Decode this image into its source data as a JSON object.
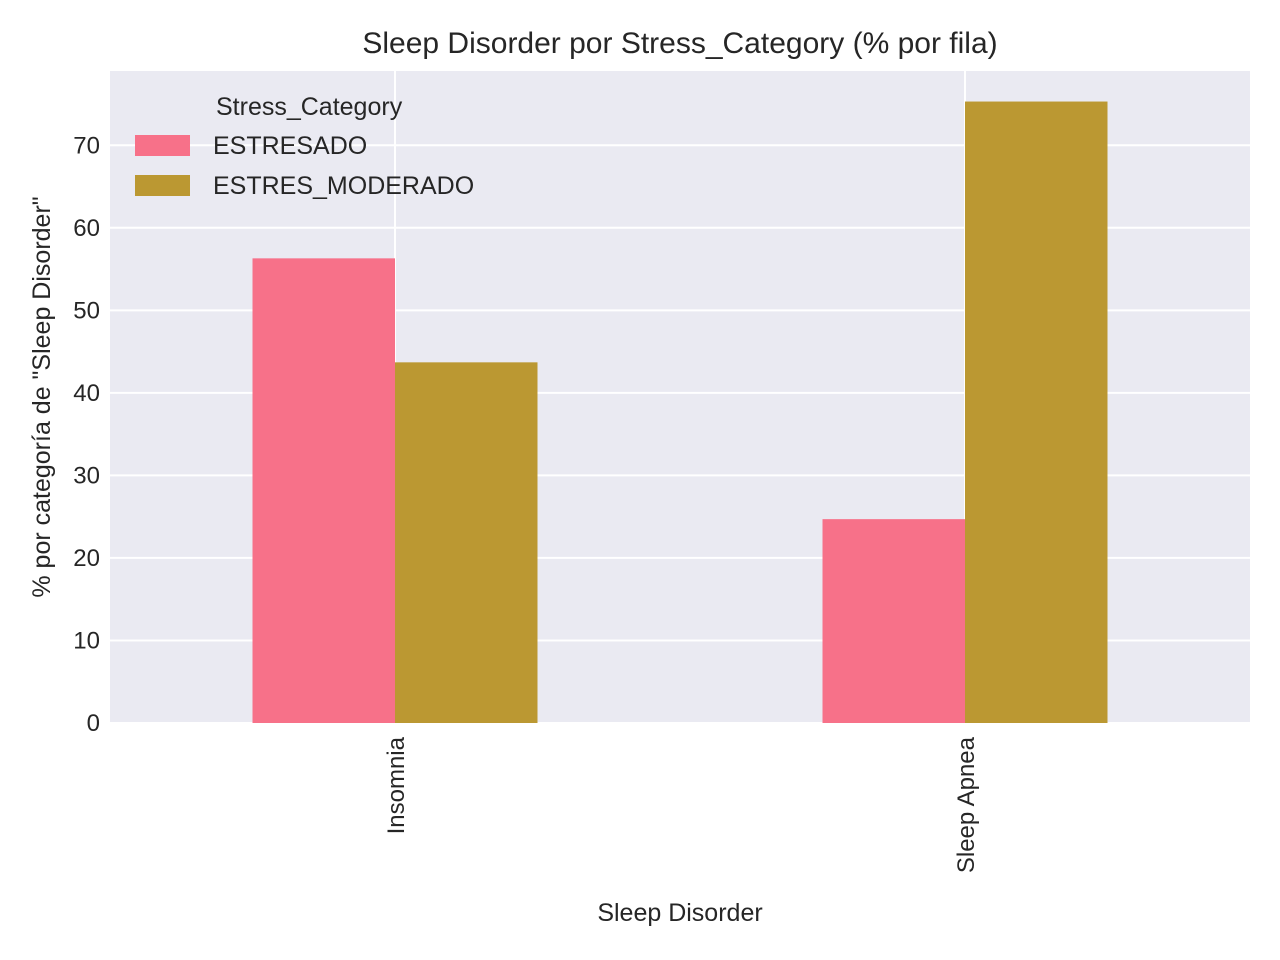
{
  "chart_data": {
    "type": "bar",
    "title": "Sleep Disorder por Stress_Category (% por fila)",
    "xlabel": "Sleep Disorder",
    "ylabel": "% por categoría de \"Sleep Disorder\"",
    "categories": [
      "Insomnia",
      "Sleep Apnea"
    ],
    "series": [
      {
        "name": "ESTRESADO",
        "values": [
          56.3,
          24.7
        ],
        "color": "#f77189"
      },
      {
        "name": "ESTRES_MODERADO",
        "values": [
          43.7,
          75.3
        ],
        "color": "#bb9832"
      }
    ],
    "ylim": [
      0,
      79
    ],
    "yticks": [
      0,
      10,
      20,
      30,
      40,
      50,
      60,
      70
    ],
    "grid": true,
    "legend": {
      "title": "Stress_Category",
      "position": "top-left"
    },
    "background_color": "#eaeaf2"
  }
}
